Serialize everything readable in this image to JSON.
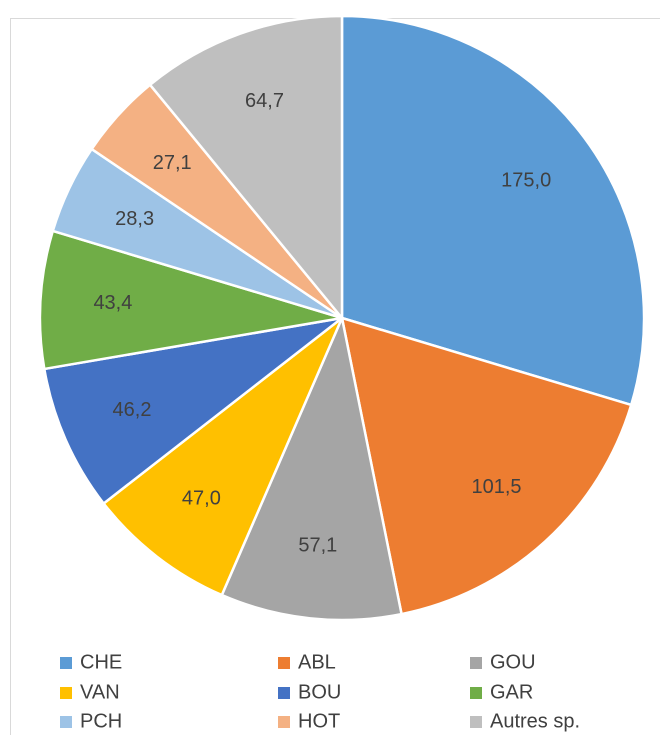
{
  "chart_data": {
    "type": "pie",
    "categories": [
      "CHE",
      "ABL",
      "GOU",
      "VAN",
      "BOU",
      "GAR",
      "PCH",
      "HOT",
      "Autres sp."
    ],
    "values": [
      175.0,
      101.5,
      57.1,
      47.0,
      46.2,
      43.4,
      28.3,
      27.1,
      64.7
    ],
    "value_labels": [
      "175,0",
      "101,5",
      "57,1",
      "47,0",
      "46,2",
      "43,4",
      "28,3",
      "27,1",
      "64,7"
    ],
    "colors": [
      "#5b9bd5",
      "#ed7d31",
      "#a5a5a5",
      "#ffc000",
      "#4472c4",
      "#70ad47",
      "#9dc3e6",
      "#f4b183",
      "#bfbfbf"
    ],
    "legend": "bottom"
  }
}
